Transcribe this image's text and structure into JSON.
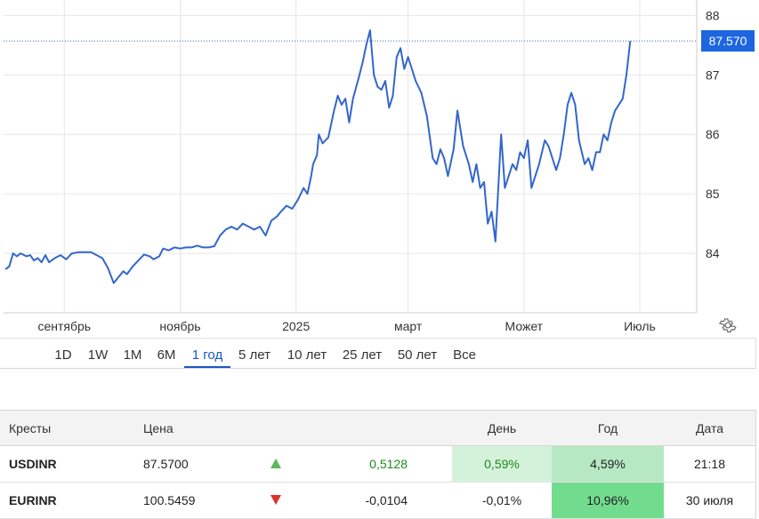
{
  "chart_data": {
    "type": "line",
    "series": [
      {
        "color": "#3366cc",
        "points": [
          [
            "2024-08-01",
            83.73
          ],
          [
            "2024-08-03",
            83.78
          ],
          [
            "2024-08-05",
            84.0
          ],
          [
            "2024-08-07",
            83.95
          ],
          [
            "2024-08-09",
            84.0
          ],
          [
            "2024-08-12",
            83.95
          ],
          [
            "2024-08-14",
            83.97
          ],
          [
            "2024-08-16",
            83.88
          ],
          [
            "2024-08-18",
            83.92
          ],
          [
            "2024-08-20",
            83.85
          ],
          [
            "2024-08-22",
            83.97
          ],
          [
            "2024-08-24",
            83.85
          ],
          [
            "2024-08-27",
            83.92
          ],
          [
            "2024-08-30",
            83.97
          ],
          [
            "2024-09-02",
            83.9
          ],
          [
            "2024-09-05",
            84.0
          ],
          [
            "2024-09-09",
            84.02
          ],
          [
            "2024-09-12",
            84.02
          ],
          [
            "2024-09-15",
            84.02
          ],
          [
            "2024-09-18",
            83.97
          ],
          [
            "2024-09-21",
            83.92
          ],
          [
            "2024-09-24",
            83.75
          ],
          [
            "2024-09-27",
            83.5
          ],
          [
            "2024-09-30",
            83.62
          ],
          [
            "2024-10-02",
            83.7
          ],
          [
            "2024-10-04",
            83.65
          ],
          [
            "2024-10-07",
            83.78
          ],
          [
            "2024-10-10",
            83.88
          ],
          [
            "2024-10-13",
            83.98
          ],
          [
            "2024-10-16",
            83.95
          ],
          [
            "2024-10-18",
            83.9
          ],
          [
            "2024-10-21",
            83.95
          ],
          [
            "2024-10-23",
            84.08
          ],
          [
            "2024-10-26",
            84.05
          ],
          [
            "2024-10-29",
            84.1
          ],
          [
            "2024-11-01",
            84.08
          ],
          [
            "2024-11-04",
            84.1
          ],
          [
            "2024-11-07",
            84.1
          ],
          [
            "2024-11-10",
            84.13
          ],
          [
            "2024-11-13",
            84.1
          ],
          [
            "2024-11-16",
            84.1
          ],
          [
            "2024-11-19",
            84.12
          ],
          [
            "2024-11-22",
            84.3
          ],
          [
            "2024-11-25",
            84.4
          ],
          [
            "2024-11-28",
            84.45
          ],
          [
            "2024-12-01",
            84.4
          ],
          [
            "2024-12-04",
            84.5
          ],
          [
            "2024-12-07",
            84.45
          ],
          [
            "2024-12-10",
            84.4
          ],
          [
            "2024-12-13",
            84.45
          ],
          [
            "2024-12-16",
            84.3
          ],
          [
            "2024-12-19",
            84.55
          ],
          [
            "2024-12-22",
            84.62
          ],
          [
            "2024-12-24",
            84.7
          ],
          [
            "2024-12-27",
            84.8
          ],
          [
            "2024-12-30",
            84.75
          ],
          [
            "2025-01-02",
            84.9
          ],
          [
            "2025-01-05",
            85.1
          ],
          [
            "2025-01-07",
            85.0
          ],
          [
            "2025-01-09",
            85.3
          ],
          [
            "2025-01-10",
            85.5
          ],
          [
            "2025-01-12",
            85.65
          ],
          [
            "2025-01-13",
            86.0
          ],
          [
            "2025-01-15",
            85.85
          ],
          [
            "2025-01-18",
            85.95
          ],
          [
            "2025-01-21",
            86.4
          ],
          [
            "2025-01-23",
            86.65
          ],
          [
            "2025-01-25",
            86.5
          ],
          [
            "2025-01-27",
            86.6
          ],
          [
            "2025-01-29",
            86.2
          ],
          [
            "2025-01-31",
            86.6
          ],
          [
            "2025-02-03",
            86.95
          ],
          [
            "2025-02-05",
            87.2
          ],
          [
            "2025-02-07",
            87.5
          ],
          [
            "2025-02-09",
            87.75
          ],
          [
            "2025-02-11",
            87.0
          ],
          [
            "2025-02-13",
            86.8
          ],
          [
            "2025-02-15",
            86.75
          ],
          [
            "2025-02-17",
            86.9
          ],
          [
            "2025-02-19",
            86.45
          ],
          [
            "2025-02-21",
            86.65
          ],
          [
            "2025-02-23",
            87.3
          ],
          [
            "2025-02-25",
            87.45
          ],
          [
            "2025-02-27",
            87.1
          ],
          [
            "2025-03-01",
            87.3
          ],
          [
            "2025-03-03",
            87.1
          ],
          [
            "2025-03-05",
            86.9
          ],
          [
            "2025-03-08",
            86.7
          ],
          [
            "2025-03-11",
            86.3
          ],
          [
            "2025-03-14",
            85.6
          ],
          [
            "2025-03-16",
            85.5
          ],
          [
            "2025-03-18",
            85.75
          ],
          [
            "2025-03-20",
            85.6
          ],
          [
            "2025-03-22",
            85.3
          ],
          [
            "2025-03-25",
            85.75
          ],
          [
            "2025-03-27",
            86.4
          ],
          [
            "2025-03-30",
            85.8
          ],
          [
            "2025-04-02",
            85.5
          ],
          [
            "2025-04-04",
            85.2
          ],
          [
            "2025-04-06",
            85.5
          ],
          [
            "2025-04-08",
            85.1
          ],
          [
            "2025-04-10",
            85.2
          ],
          [
            "2025-04-12",
            84.5
          ],
          [
            "2025-04-14",
            84.7
          ],
          [
            "2025-04-16",
            84.2
          ],
          [
            "2025-04-19",
            86.0
          ],
          [
            "2025-04-21",
            85.1
          ],
          [
            "2025-04-23",
            85.3
          ],
          [
            "2025-04-25",
            85.5
          ],
          [
            "2025-04-27",
            85.4
          ],
          [
            "2025-04-29",
            85.7
          ],
          [
            "2025-05-01",
            85.6
          ],
          [
            "2025-05-03",
            85.9
          ],
          [
            "2025-05-05",
            85.1
          ],
          [
            "2025-05-07",
            85.3
          ],
          [
            "2025-05-09",
            85.5
          ],
          [
            "2025-05-12",
            85.9
          ],
          [
            "2025-05-14",
            85.8
          ],
          [
            "2025-05-16",
            85.6
          ],
          [
            "2025-05-18",
            85.4
          ],
          [
            "2025-05-20",
            85.6
          ],
          [
            "2025-05-22",
            86.0
          ],
          [
            "2025-05-24",
            86.5
          ],
          [
            "2025-05-26",
            86.7
          ],
          [
            "2025-05-28",
            86.5
          ],
          [
            "2025-05-30",
            85.9
          ],
          [
            "2025-06-02",
            85.5
          ],
          [
            "2025-06-04",
            85.6
          ],
          [
            "2025-06-06",
            85.4
          ],
          [
            "2025-06-08",
            85.7
          ],
          [
            "2025-06-10",
            85.7
          ],
          [
            "2025-06-12",
            86.0
          ],
          [
            "2025-06-14",
            85.9
          ],
          [
            "2025-06-16",
            86.2
          ],
          [
            "2025-06-18",
            86.4
          ],
          [
            "2025-06-20",
            86.5
          ],
          [
            "2025-06-22",
            86.6
          ],
          [
            "2025-06-24",
            87.0
          ],
          [
            "2025-06-26",
            87.57
          ]
        ]
      }
    ],
    "y_ticks": [
      "84",
      "85",
      "86",
      "87",
      "88"
    ],
    "ylim": [
      83.0,
      88.2
    ],
    "x_ticks": [
      {
        "label": "сентябрь",
        "date": "2024-09-01"
      },
      {
        "label": "ноябрь",
        "date": "2024-11-01"
      },
      {
        "label": "2025",
        "date": "2025-01-01"
      },
      {
        "label": "март",
        "date": "2025-03-01"
      },
      {
        "label": "Может",
        "date": "2025-05-01"
      },
      {
        "label": "Июль",
        "date": "2025-07-01"
      }
    ],
    "xlim": [
      "2024-07-31",
      "2025-07-31"
    ],
    "grid": true,
    "current_value": "87.570",
    "current_y": 87.57
  },
  "ranges": [
    "1D",
    "1W",
    "1M",
    "6M",
    "1 год",
    "5 лет",
    "10 лет",
    "25 лет",
    "50 лет",
    "Все"
  ],
  "active_range": "1 год",
  "table": {
    "headers": {
      "cross": "Кресты",
      "price": "Цена",
      "change": "",
      "day": "День",
      "year": "Год",
      "date": "Дата"
    },
    "rows": [
      {
        "symbol": "USDINR",
        "price": "87.5700",
        "direction": "up",
        "change": "0,5128",
        "day": "0,59%",
        "year": "4,59%",
        "date": "21:18"
      },
      {
        "symbol": "EURINR",
        "price": "100.5459",
        "direction": "down",
        "change": "-0,0104",
        "day": "-0,01%",
        "year": "10,96%",
        "date": "30 июля"
      }
    ]
  },
  "colors": {
    "line": "#3366cc",
    "badge": "#1e66e0",
    "day_up": "#d4f2da",
    "year_up_light": "#b6e8c4",
    "year_up_strong": "#72dc8e"
  }
}
